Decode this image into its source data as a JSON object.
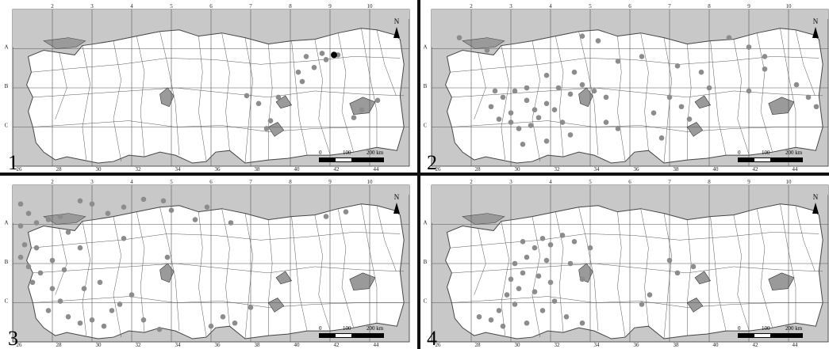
{
  "figure": {
    "north_label": "N",
    "scale_labels": [
      "0",
      "100",
      "200 km"
    ],
    "grid_top_labels": [
      "2",
      "3",
      "4",
      "5",
      "6",
      "7",
      "8",
      "9",
      "10"
    ],
    "grid_bottom_labels": [
      "26",
      "28",
      "30",
      "32",
      "34",
      "36",
      "38",
      "40",
      "42",
      "44"
    ],
    "grid_row_labels": [
      "A",
      "B",
      "C"
    ],
    "colors": {
      "sea": "#c8c8c8",
      "land": "#ffffff",
      "lake": "#9a9a9a",
      "point": "#8c8c8c",
      "special_point": "#000000",
      "border": "#444444"
    }
  },
  "panels": [
    {
      "number": "1",
      "points": [
        [
          0.74,
          0.3
        ],
        [
          0.78,
          0.28
        ],
        [
          0.79,
          0.32
        ],
        [
          0.76,
          0.37
        ],
        [
          0.72,
          0.4
        ],
        [
          0.73,
          0.46
        ],
        [
          0.59,
          0.55
        ],
        [
          0.62,
          0.6
        ],
        [
          0.67,
          0.56
        ],
        [
          0.92,
          0.58
        ],
        [
          0.88,
          0.64
        ],
        [
          0.86,
          0.69
        ],
        [
          0.65,
          0.71
        ],
        [
          0.64,
          0.76
        ],
        [
          0.82,
          0.29
        ]
      ],
      "special_points": [
        [
          0.81,
          0.29
        ]
      ]
    },
    {
      "number": "2",
      "points": [
        [
          0.07,
          0.18
        ],
        [
          0.14,
          0.26
        ],
        [
          0.38,
          0.17
        ],
        [
          0.42,
          0.2
        ],
        [
          0.47,
          0.33
        ],
        [
          0.53,
          0.3
        ],
        [
          0.75,
          0.18
        ],
        [
          0.8,
          0.24
        ],
        [
          0.84,
          0.3
        ],
        [
          0.16,
          0.52
        ],
        [
          0.18,
          0.56
        ],
        [
          0.21,
          0.52
        ],
        [
          0.24,
          0.5
        ],
        [
          0.24,
          0.58
        ],
        [
          0.26,
          0.64
        ],
        [
          0.2,
          0.66
        ],
        [
          0.15,
          0.62
        ],
        [
          0.17,
          0.7
        ],
        [
          0.2,
          0.72
        ],
        [
          0.22,
          0.76
        ],
        [
          0.25,
          0.74
        ],
        [
          0.27,
          0.69
        ],
        [
          0.29,
          0.6
        ],
        [
          0.31,
          0.64
        ],
        [
          0.32,
          0.5
        ],
        [
          0.35,
          0.54
        ],
        [
          0.38,
          0.48
        ],
        [
          0.41,
          0.52
        ],
        [
          0.44,
          0.56
        ],
        [
          0.33,
          0.72
        ],
        [
          0.35,
          0.8
        ],
        [
          0.44,
          0.72
        ],
        [
          0.47,
          0.76
        ],
        [
          0.56,
          0.66
        ],
        [
          0.6,
          0.56
        ],
        [
          0.63,
          0.62
        ],
        [
          0.68,
          0.4
        ],
        [
          0.7,
          0.5
        ],
        [
          0.8,
          0.52
        ],
        [
          0.84,
          0.38
        ],
        [
          0.92,
          0.48
        ],
        [
          0.95,
          0.56
        ],
        [
          0.97,
          0.62
        ],
        [
          0.23,
          0.86
        ],
        [
          0.29,
          0.84
        ],
        [
          0.65,
          0.7
        ],
        [
          0.58,
          0.82
        ],
        [
          0.36,
          0.4
        ],
        [
          0.29,
          0.42
        ],
        [
          0.62,
          0.36
        ]
      ],
      "special_points": []
    },
    {
      "number": "3",
      "points": [
        [
          0.02,
          0.12
        ],
        [
          0.04,
          0.18
        ],
        [
          0.02,
          0.26
        ],
        [
          0.06,
          0.24
        ],
        [
          0.09,
          0.22
        ],
        [
          0.12,
          0.2
        ],
        [
          0.14,
          0.3
        ],
        [
          0.17,
          0.1
        ],
        [
          0.2,
          0.12
        ],
        [
          0.24,
          0.18
        ],
        [
          0.28,
          0.14
        ],
        [
          0.33,
          0.09
        ],
        [
          0.38,
          0.1
        ],
        [
          0.4,
          0.16
        ],
        [
          0.46,
          0.22
        ],
        [
          0.49,
          0.14
        ],
        [
          0.55,
          0.24
        ],
        [
          0.79,
          0.2
        ],
        [
          0.84,
          0.17
        ],
        [
          0.03,
          0.38
        ],
        [
          0.06,
          0.4
        ],
        [
          0.02,
          0.46
        ],
        [
          0.04,
          0.52
        ],
        [
          0.07,
          0.56
        ],
        [
          0.05,
          0.62
        ],
        [
          0.1,
          0.48
        ],
        [
          0.13,
          0.54
        ],
        [
          0.1,
          0.66
        ],
        [
          0.12,
          0.74
        ],
        [
          0.09,
          0.8
        ],
        [
          0.14,
          0.84
        ],
        [
          0.17,
          0.88
        ],
        [
          0.2,
          0.86
        ],
        [
          0.23,
          0.9
        ],
        [
          0.25,
          0.8
        ],
        [
          0.27,
          0.76
        ],
        [
          0.3,
          0.7
        ],
        [
          0.33,
          0.86
        ],
        [
          0.37,
          0.92
        ],
        [
          0.5,
          0.9
        ],
        [
          0.53,
          0.84
        ],
        [
          0.56,
          0.88
        ],
        [
          0.17,
          0.4
        ],
        [
          0.28,
          0.34
        ],
        [
          0.39,
          0.46
        ],
        [
          0.6,
          0.78
        ],
        [
          0.18,
          0.66
        ],
        [
          0.22,
          0.62
        ]
      ],
      "special_points": []
    },
    {
      "number": "4",
      "points": [
        [
          0.23,
          0.36
        ],
        [
          0.26,
          0.4
        ],
        [
          0.28,
          0.34
        ],
        [
          0.3,
          0.38
        ],
        [
          0.33,
          0.32
        ],
        [
          0.36,
          0.36
        ],
        [
          0.4,
          0.4
        ],
        [
          0.24,
          0.46
        ],
        [
          0.21,
          0.5
        ],
        [
          0.23,
          0.56
        ],
        [
          0.2,
          0.6
        ],
        [
          0.22,
          0.66
        ],
        [
          0.19,
          0.7
        ],
        [
          0.21,
          0.76
        ],
        [
          0.17,
          0.8
        ],
        [
          0.15,
          0.86
        ],
        [
          0.12,
          0.84
        ],
        [
          0.18,
          0.9
        ],
        [
          0.24,
          0.88
        ],
        [
          0.28,
          0.8
        ],
        [
          0.31,
          0.74
        ],
        [
          0.34,
          0.84
        ],
        [
          0.38,
          0.88
        ],
        [
          0.3,
          0.62
        ],
        [
          0.27,
          0.58
        ],
        [
          0.26,
          0.68
        ],
        [
          0.6,
          0.48
        ],
        [
          0.62,
          0.56
        ],
        [
          0.66,
          0.52
        ],
        [
          0.55,
          0.7
        ],
        [
          0.53,
          0.76
        ],
        [
          0.29,
          0.48
        ],
        [
          0.35,
          0.5
        ],
        [
          0.38,
          0.6
        ]
      ],
      "special_points": []
    }
  ]
}
